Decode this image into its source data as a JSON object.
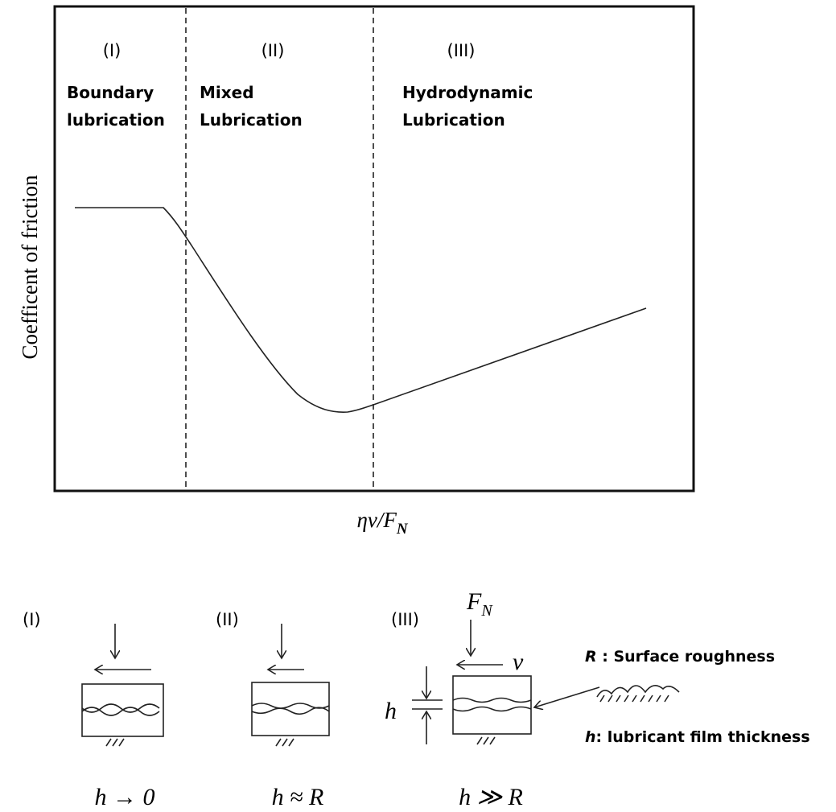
{
  "plot": {
    "y_axis_label": "Coefficent of friction",
    "x_axis_label": {
      "main": "ηv/F",
      "subscript": "N"
    },
    "regions": [
      {
        "numeral": "(I)",
        "name": [
          "Boundary",
          "lubrication"
        ]
      },
      {
        "numeral": "(II)",
        "name": [
          "Mixed",
          "Lubrication"
        ]
      },
      {
        "numeral": "(III)",
        "name": [
          "Hydrodynamic",
          "Lubrication"
        ]
      }
    ]
  },
  "regimes": [
    {
      "numeral": "(I)",
      "condition": "h → 0"
    },
    {
      "numeral": "(II)",
      "condition": "h ≈ R"
    },
    {
      "numeral": "(III)",
      "condition": "h ≫ R",
      "force": {
        "symbol": "F",
        "subscript": "N"
      },
      "velocity": "v",
      "gap": "h"
    }
  ],
  "legend": [
    {
      "symbol": "R",
      "text": " : Surface roughness"
    },
    {
      "symbol": "h",
      "text": ": lubricant film thickness"
    }
  ]
}
